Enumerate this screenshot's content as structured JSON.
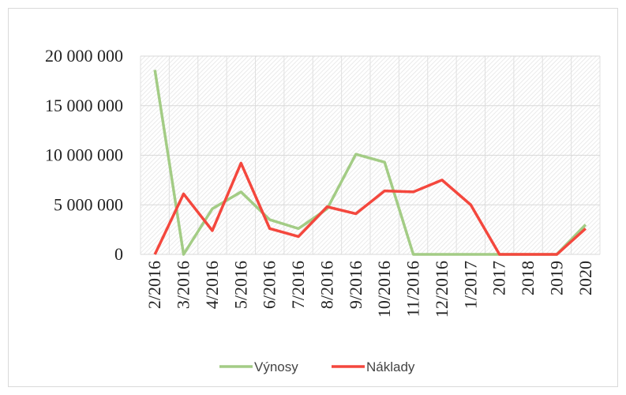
{
  "chart_data": {
    "type": "line",
    "categories": [
      "2/2016",
      "3/2016",
      "4/2016",
      "5/2016",
      "6/2016",
      "7/2016",
      "8/2016",
      "9/2016",
      "10/2016",
      "11/2016",
      "12/2016",
      "1/2017",
      "2017",
      "2018",
      "2019",
      "2020"
    ],
    "series": [
      {
        "name": "Výnosy",
        "color": "#a3cc85",
        "values": [
          18600000,
          0,
          4600000,
          6300000,
          3500000,
          2600000,
          4600000,
          10100000,
          9300000,
          0,
          0,
          0,
          0,
          0,
          0,
          3000000
        ]
      },
      {
        "name": "Náklady",
        "color": "#f4473d",
        "values": [
          0,
          6100000,
          2400000,
          9200000,
          2600000,
          1800000,
          4800000,
          4100000,
          6400000,
          6300000,
          7500000,
          5000000,
          0,
          0,
          0,
          2600000
        ]
      }
    ],
    "ylim": [
      0,
      20000000
    ],
    "yticks": [
      {
        "value": 0,
        "label": "0"
      },
      {
        "value": 5000000,
        "label": "5 000 000"
      },
      {
        "value": 10000000,
        "label": "10 000 000"
      },
      {
        "value": 15000000,
        "label": "15 000 000"
      },
      {
        "value": 20000000,
        "label": "20 000 000"
      }
    ],
    "grid": true,
    "legend": "bottom"
  }
}
